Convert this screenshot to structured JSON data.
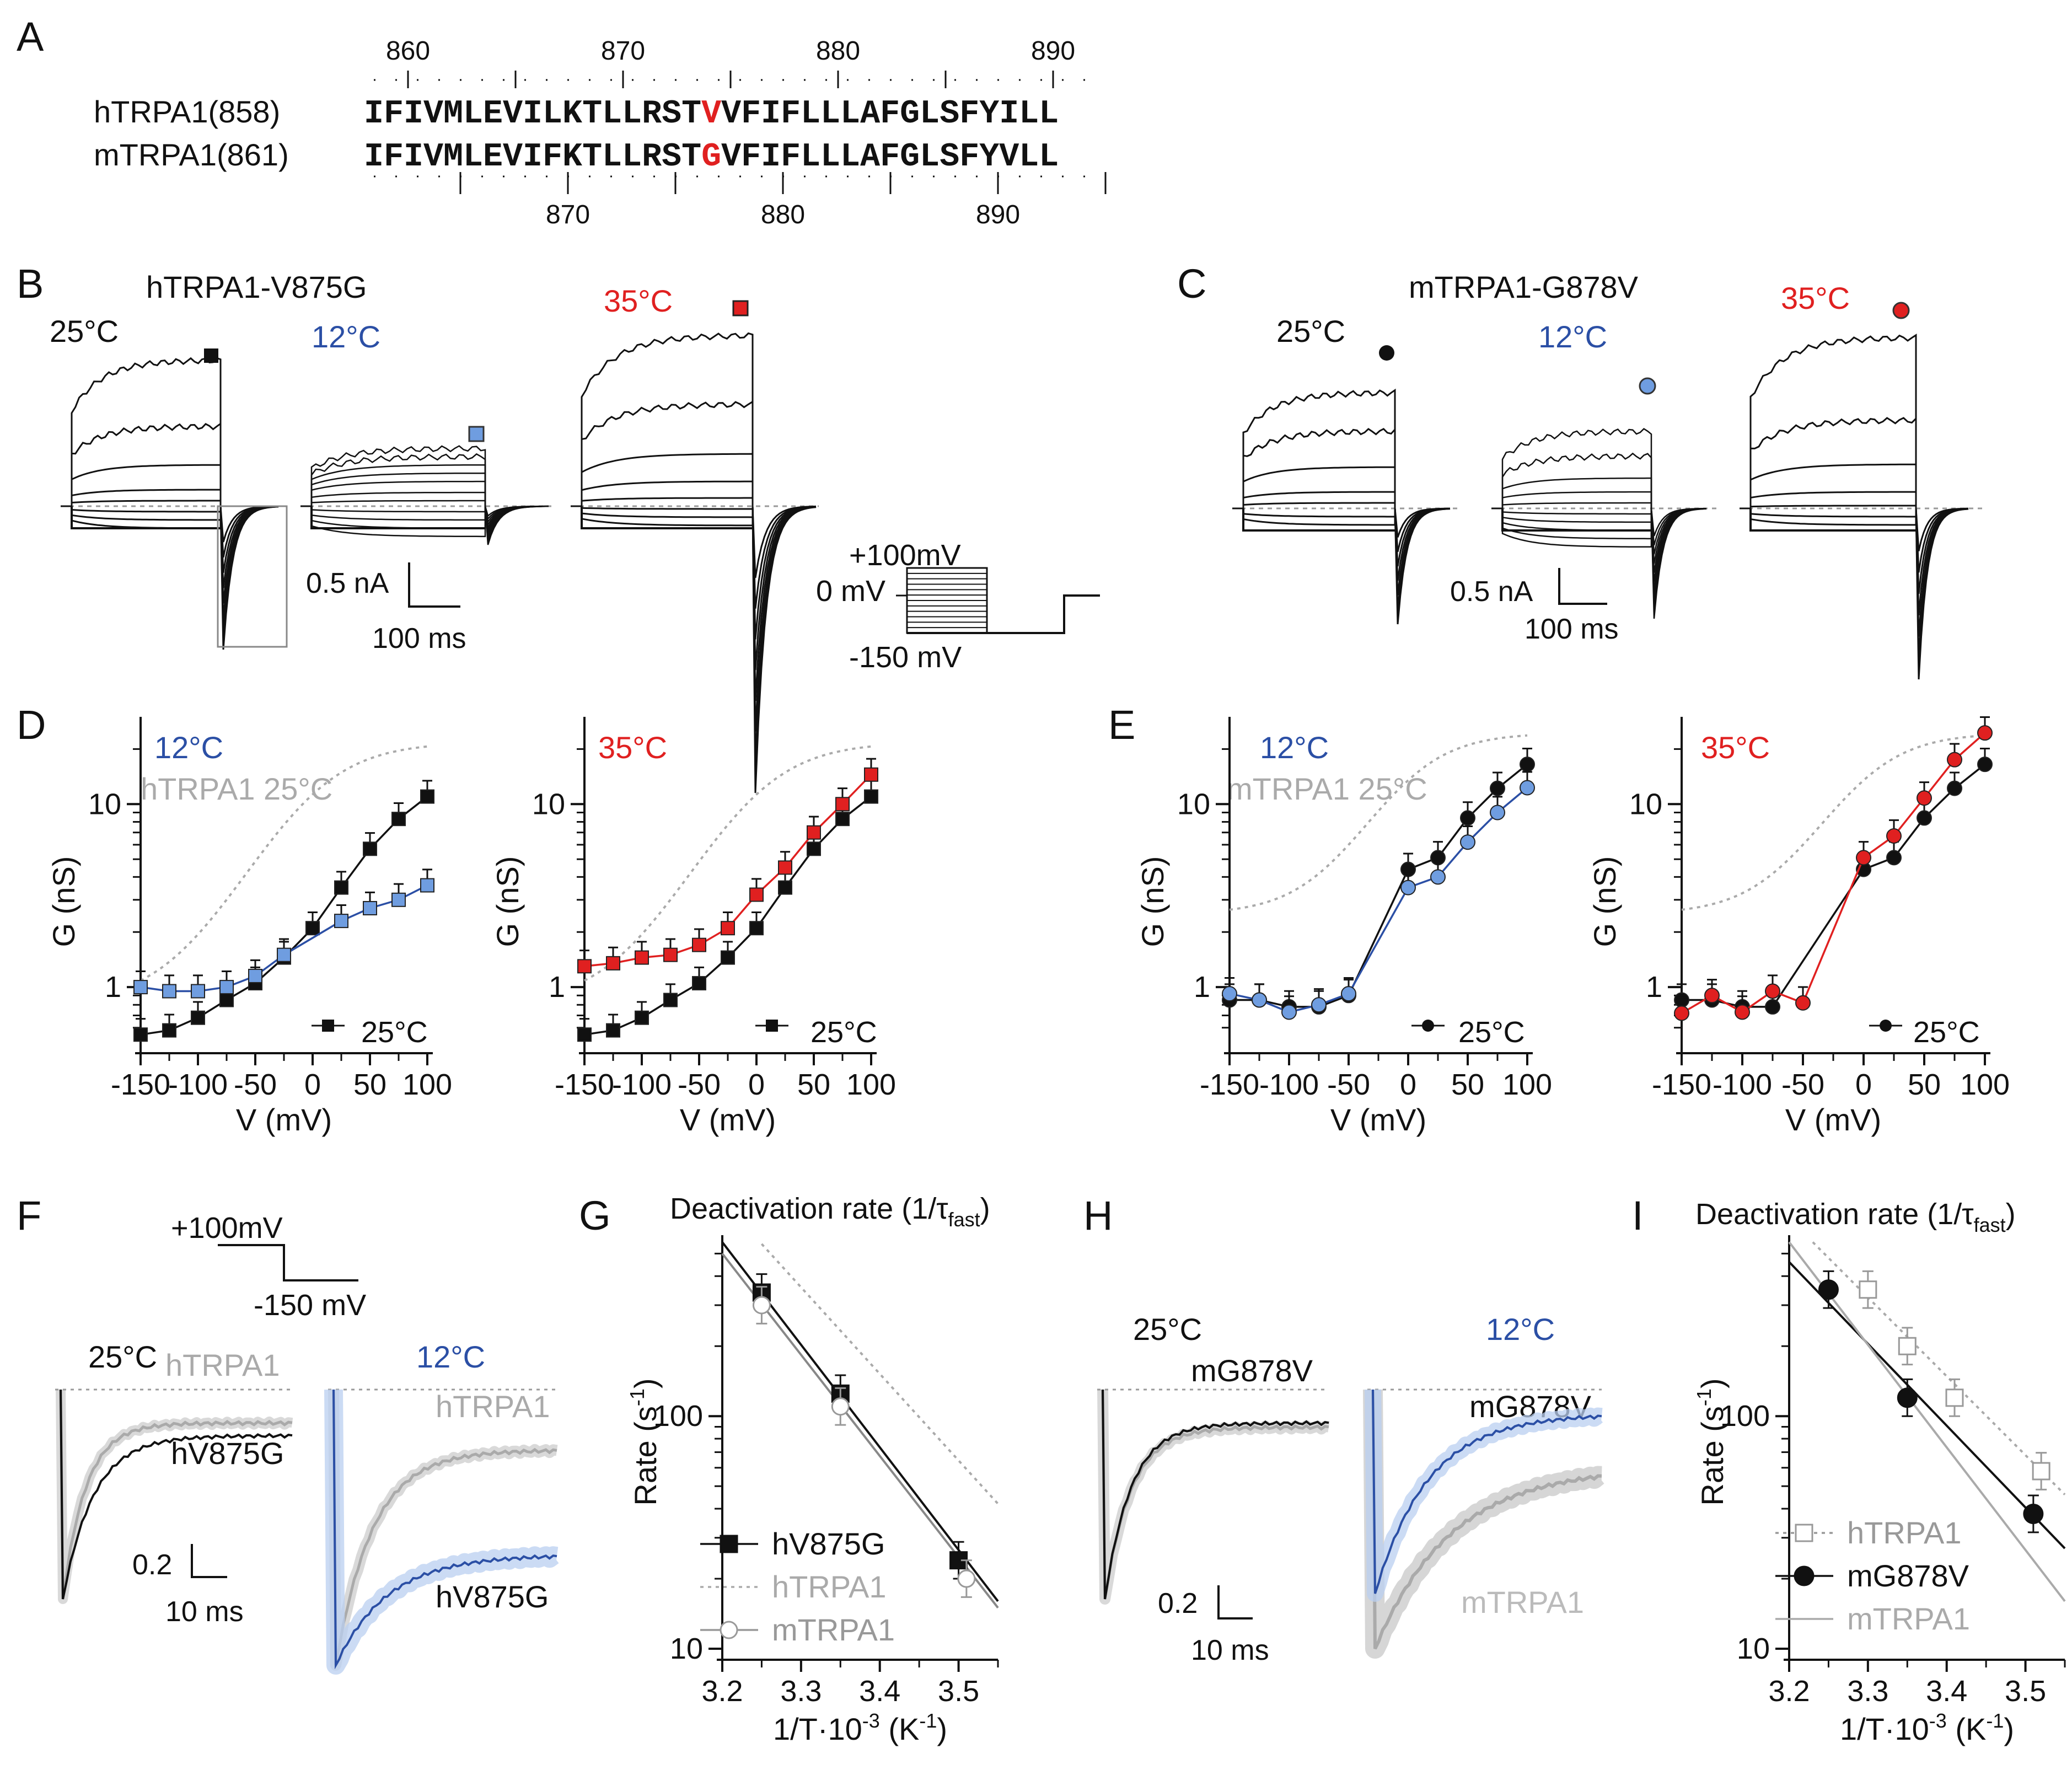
{
  "colors": {
    "black": "#111111",
    "blue": "#2b4fa5",
    "lightblue": "#6f9de0",
    "red": "#e02020",
    "gray": "#9a9a9a",
    "lightgray": "#c4c4c4"
  },
  "panels": {
    "A": "A",
    "B": "B",
    "C": "C",
    "D": "D",
    "E": "E",
    "F": "F",
    "G": "G",
    "H": "H",
    "I": "I"
  },
  "alignment": {
    "top_ticks": [
      "860",
      "870",
      "880",
      "890"
    ],
    "bottom_ticks": [
      "870",
      "880",
      "890"
    ],
    "rows": [
      {
        "label": "hTRPA1(858)",
        "pre": "IFIVMLEVILKTLLRST",
        "mut": "V",
        "post": "VFIFLLLAFGLSFYILL"
      },
      {
        "label": "mTRPA1(861)",
        "pre": "IFIVMLEVIFKTLLRST",
        "mut": "G",
        "post": "VFIFLLLAFGLSFYVLL"
      }
    ]
  },
  "panelB": {
    "title": "hTRPA1-V875G",
    "t25": "25°C",
    "t12": "12°C",
    "t35": "35°C",
    "scale_current": "0.5 nA",
    "scale_time": "100 ms"
  },
  "panelC": {
    "title": "mTRPA1-G878V",
    "t25": "25°C",
    "t12": "12°C",
    "t35": "35°C",
    "scale_current": "0.5 nA",
    "scale_time": "100 ms"
  },
  "protocol": {
    "top": "+100mV",
    "zero": "0 mV",
    "bottom": "-150 mV"
  },
  "gv_axes": {
    "ylabel": "G (nS)",
    "xlabel": "V (mV)",
    "xticks": [
      "-150",
      "-100",
      "-50",
      "0",
      "50",
      "100"
    ],
    "yticks": [
      "1",
      "10"
    ]
  },
  "panelD": {
    "left_temp": "12°C",
    "left_ref": "hTRPA1 25°C",
    "right_temp": "35°C",
    "legend": "25°C"
  },
  "panelE": {
    "left_temp": "12°C",
    "left_ref": "mTRPA1 25°C",
    "right_temp": "35°C",
    "legend": "25°C"
  },
  "panelF": {
    "protocol_top": "+100mV",
    "protocol_bottom": "-150 mV",
    "t25": "25°C",
    "t12": "12°C",
    "ref": "hTRPA1",
    "mut": "hV875G",
    "scale_y": "0.2",
    "scale_t": "10 ms"
  },
  "panelH": {
    "t25": "25°C",
    "t12": "12°C",
    "mut": "mG878V",
    "ref": "mTRPA1",
    "scale_y": "0.2",
    "scale_t": "10 ms"
  },
  "rate_axes": {
    "title_main": "Deactivation rate (1/τ",
    "title_sub": "fast",
    "title_end": ")",
    "ylabel": "Rate (s",
    "ylabel_sup": "-1",
    "ylabel_end": ")",
    "xlabel": "1/T·10",
    "xlabel_sup1": "-3",
    "xlabel_mid": " (K",
    "xlabel_sup2": "-1",
    "xlabel_end": ")",
    "xticks": [
      "3.2",
      "3.3",
      "3.4",
      "3.5"
    ],
    "yticks": [
      "10",
      "100"
    ]
  },
  "panelG": {
    "legend": [
      "hV875G",
      "hTRPA1",
      "mTRPA1"
    ]
  },
  "panelI": {
    "legend": [
      "hTRPA1",
      "mG878V",
      "mTRPA1"
    ]
  },
  "chart_data": [
    {
      "panel": "D-left",
      "type": "scatter",
      "xlabel": "V (mV)",
      "ylabel": "G (nS)",
      "xlim": [
        -150,
        100
      ],
      "ylim": [
        0.5,
        30
      ],
      "yscale": "log",
      "series": [
        {
          "name": "25°C",
          "x": [
            -150,
            -125,
            -100,
            -75,
            -50,
            -25,
            0,
            25,
            50,
            75,
            100
          ],
          "y": [
            0.55,
            0.58,
            0.68,
            0.85,
            1.05,
            1.45,
            2.1,
            3.5,
            5.7,
            8.3,
            11
          ]
        },
        {
          "name": "12°C",
          "x": [
            -150,
            -125,
            -100,
            -75,
            -50,
            -25,
            25,
            50,
            75,
            100
          ],
          "y": [
            1.0,
            0.95,
            0.95,
            1.0,
            1.15,
            1.5,
            2.3,
            2.7,
            3.0,
            3.6
          ]
        }
      ]
    },
    {
      "panel": "D-right",
      "type": "scatter",
      "xlabel": "V (mV)",
      "ylabel": "G (nS)",
      "xlim": [
        -150,
        100
      ],
      "ylim": [
        0.5,
        30
      ],
      "yscale": "log",
      "series": [
        {
          "name": "25°C",
          "x": [
            -150,
            -125,
            -100,
            -75,
            -50,
            -25,
            0,
            25,
            50,
            75,
            100
          ],
          "y": [
            0.55,
            0.58,
            0.68,
            0.85,
            1.05,
            1.45,
            2.1,
            3.5,
            5.7,
            8.3,
            11
          ]
        },
        {
          "name": "35°C",
          "x": [
            -150,
            -125,
            -100,
            -75,
            -50,
            -25,
            0,
            25,
            50,
            75,
            100
          ],
          "y": [
            1.3,
            1.35,
            1.45,
            1.5,
            1.7,
            2.1,
            3.2,
            4.5,
            7.0,
            10.0,
            14.5
          ]
        }
      ]
    },
    {
      "panel": "E-left",
      "type": "scatter",
      "xlabel": "V (mV)",
      "ylabel": "G (nS)",
      "xlim": [
        -150,
        100
      ],
      "ylim": [
        0.5,
        30
      ],
      "yscale": "log",
      "series": [
        {
          "name": "25°C",
          "x": [
            -150,
            -125,
            -100,
            -75,
            -50,
            0,
            25,
            50,
            75,
            100
          ],
          "y": [
            0.85,
            0.85,
            0.78,
            0.78,
            0.9,
            4.4,
            5.1,
            8.4,
            12.2,
            16.5
          ]
        },
        {
          "name": "12°C",
          "x": [
            -150,
            -125,
            -100,
            -75,
            -50,
            0,
            25,
            50,
            75,
            100
          ],
          "y": [
            0.92,
            0.85,
            0.73,
            0.8,
            0.92,
            3.5,
            4.0,
            6.2,
            9.0,
            12.3
          ]
        }
      ]
    },
    {
      "panel": "E-right",
      "type": "scatter",
      "xlabel": "V (mV)",
      "ylabel": "G (nS)",
      "xlim": [
        -150,
        100
      ],
      "ylim": [
        0.5,
        30
      ],
      "yscale": "log",
      "series": [
        {
          "name": "25°C",
          "x": [
            -150,
            -125,
            -100,
            -75,
            0,
            25,
            50,
            75,
            100
          ],
          "y": [
            0.85,
            0.85,
            0.78,
            0.78,
            4.4,
            5.1,
            8.4,
            12.2,
            16.5
          ]
        },
        {
          "name": "35°C",
          "x": [
            -150,
            -125,
            -100,
            -75,
            -50,
            0,
            25,
            50,
            75,
            100
          ],
          "y": [
            0.72,
            0.9,
            0.73,
            0.95,
            0.82,
            5.1,
            6.7,
            10.8,
            17.5,
            24.5
          ]
        }
      ]
    },
    {
      "panel": "G",
      "type": "scatter",
      "xlabel": "1/T·10-3 (K-1)",
      "ylabel": "Rate (s-1)",
      "xlim": [
        3.2,
        3.55
      ],
      "ylim": [
        10,
        600
      ],
      "yscale": "log",
      "series": [
        {
          "name": "hV875G",
          "x": [
            3.25,
            3.35,
            3.5
          ],
          "y": [
            340,
            125,
            24
          ]
        },
        {
          "name": "mTRPA1",
          "x": [
            3.25,
            3.35,
            3.51
          ],
          "y": [
            300,
            110,
            20
          ]
        }
      ]
    },
    {
      "panel": "I",
      "type": "scatter",
      "xlabel": "1/T·10-3 (K-1)",
      "ylabel": "Rate (s-1)",
      "xlim": [
        3.2,
        3.55
      ],
      "ylim": [
        10,
        600
      ],
      "yscale": "log",
      "series": [
        {
          "name": "mG878V",
          "x": [
            3.25,
            3.35,
            3.51
          ],
          "y": [
            350,
            120,
            38
          ]
        },
        {
          "name": "hTRPA1",
          "x": [
            3.3,
            3.35,
            3.41,
            3.52
          ],
          "y": [
            350,
            200,
            120,
            58
          ]
        }
      ]
    }
  ]
}
